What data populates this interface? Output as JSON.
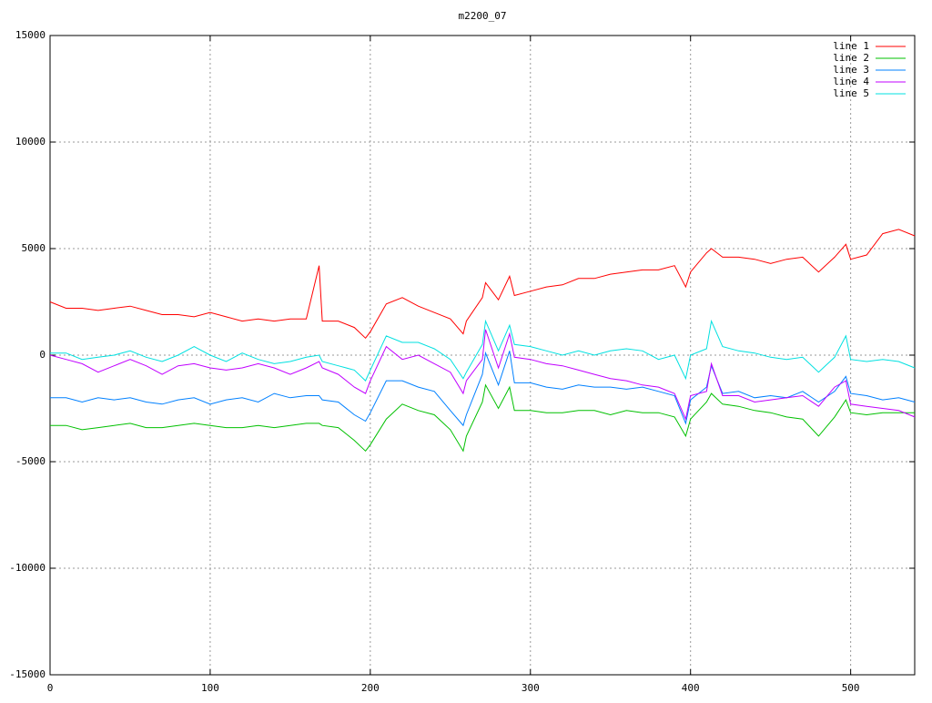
{
  "chart_data": {
    "type": "line",
    "title": "m2200_07",
    "x": [
      0,
      10,
      20,
      30,
      40,
      50,
      60,
      70,
      80,
      90,
      100,
      110,
      120,
      130,
      140,
      150,
      160,
      168,
      170,
      180,
      190,
      197,
      200,
      210,
      220,
      230,
      240,
      250,
      258,
      260,
      270,
      272,
      280,
      287,
      290,
      300,
      310,
      320,
      330,
      340,
      350,
      360,
      370,
      380,
      390,
      397,
      400,
      410,
      413,
      420,
      430,
      440,
      450,
      460,
      470,
      480,
      490,
      497,
      500,
      510,
      520,
      530,
      540
    ],
    "series": [
      {
        "name": "line 1",
        "color": "#ff0000",
        "values": [
          2500,
          2200,
          2200,
          2100,
          2200,
          2300,
          2100,
          1900,
          1900,
          1800,
          2000,
          1800,
          1600,
          1700,
          1600,
          1700,
          1700,
          4200,
          1600,
          1600,
          1300,
          800,
          1100,
          2400,
          2700,
          2300,
          2000,
          1700,
          1000,
          1600,
          2700,
          3400,
          2600,
          3700,
          2800,
          3000,
          3200,
          3300,
          3600,
          3600,
          3800,
          3900,
          4000,
          4000,
          4200,
          3200,
          3900,
          4800,
          5000,
          4600,
          4600,
          4500,
          4300,
          4500,
          4600,
          3900,
          4600,
          5200,
          4500,
          4700,
          5700,
          5900,
          5600
        ]
      },
      {
        "name": "line 2",
        "color": "#00c000",
        "values": [
          -3300,
          -3300,
          -3500,
          -3400,
          -3300,
          -3200,
          -3400,
          -3400,
          -3300,
          -3200,
          -3300,
          -3400,
          -3400,
          -3300,
          -3400,
          -3300,
          -3200,
          -3200,
          -3300,
          -3400,
          -4000,
          -4500,
          -4200,
          -3000,
          -2300,
          -2600,
          -2800,
          -3500,
          -4500,
          -3800,
          -2200,
          -1400,
          -2500,
          -1500,
          -2600,
          -2600,
          -2700,
          -2700,
          -2600,
          -2600,
          -2800,
          -2600,
          -2700,
          -2700,
          -2900,
          -3800,
          -3000,
          -2200,
          -1800,
          -2300,
          -2400,
          -2600,
          -2700,
          -2900,
          -3000,
          -3800,
          -2900,
          -2100,
          -2700,
          -2800,
          -2700,
          -2700,
          -2700
        ]
      },
      {
        "name": "line 3",
        "color": "#0080ff",
        "values": [
          -2000,
          -2000,
          -2200,
          -2000,
          -2100,
          -2000,
          -2200,
          -2300,
          -2100,
          -2000,
          -2300,
          -2100,
          -2000,
          -2200,
          -1800,
          -2000,
          -1900,
          -1900,
          -2100,
          -2200,
          -2800,
          -3100,
          -2700,
          -1200,
          -1200,
          -1500,
          -1700,
          -2600,
          -3300,
          -2800,
          -900,
          100,
          -1400,
          200,
          -1300,
          -1300,
          -1500,
          -1600,
          -1400,
          -1500,
          -1500,
          -1600,
          -1500,
          -1700,
          -1900,
          -3200,
          -2100,
          -1500,
          -500,
          -1800,
          -1700,
          -2000,
          -1900,
          -2000,
          -1700,
          -2200,
          -1700,
          -1000,
          -1800,
          -1900,
          -2100,
          -2000,
          -2200
        ]
      },
      {
        "name": "line 4",
        "color": "#c000ff",
        "values": [
          0,
          -200,
          -400,
          -800,
          -500,
          -200,
          -500,
          -900,
          -500,
          -400,
          -600,
          -700,
          -600,
          -400,
          -600,
          -900,
          -600,
          -300,
          -600,
          -900,
          -1500,
          -1800,
          -1200,
          400,
          -200,
          0,
          -400,
          -800,
          -1800,
          -1200,
          -200,
          1200,
          -600,
          1000,
          -100,
          -200,
          -400,
          -500,
          -700,
          -900,
          -1100,
          -1200,
          -1400,
          -1500,
          -1800,
          -3000,
          -1900,
          -1700,
          -400,
          -1900,
          -1900,
          -2200,
          -2100,
          -2000,
          -1900,
          -2400,
          -1500,
          -1200,
          -2300,
          -2400,
          -2500,
          -2600,
          -2900
        ]
      },
      {
        "name": "line 5",
        "color": "#00e0e0",
        "values": [
          100,
          100,
          -200,
          -100,
          0,
          200,
          -100,
          -300,
          0,
          400,
          0,
          -300,
          100,
          -200,
          -400,
          -300,
          -100,
          0,
          -300,
          -500,
          -700,
          -1200,
          -700,
          900,
          600,
          600,
          300,
          -200,
          -1100,
          -800,
          500,
          1600,
          200,
          1400,
          500,
          400,
          200,
          0,
          200,
          0,
          200,
          300,
          200,
          -200,
          0,
          -1100,
          0,
          300,
          1600,
          400,
          200,
          100,
          -100,
          -200,
          -100,
          -800,
          -100,
          900,
          -200,
          -300,
          -200,
          -300,
          -600
        ]
      }
    ],
    "xlim": [
      0,
      540
    ],
    "xticks": [
      0,
      100,
      200,
      300,
      400,
      500
    ],
    "ylim": [
      -15000,
      15000
    ],
    "yticks": [
      -15000,
      -10000,
      -5000,
      0,
      5000,
      10000,
      15000
    ],
    "grid": true,
    "legend": "top-right"
  }
}
